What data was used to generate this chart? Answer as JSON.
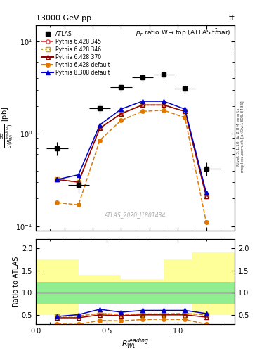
{
  "title_top": "13000 GeV pp",
  "title_right": "tt",
  "watermark": "ATLAS_2020_I1801434",
  "rivet_text": "Rivet 3.1.10, ≥ 2.8M events",
  "mcplots_text": "mcplots.cern.ch [arXiv:1306.3436]",
  "xlim": [
    0,
    1.4
  ],
  "ylim_main": [
    0.09,
    15
  ],
  "ylim_ratio": [
    0.3,
    2.2
  ],
  "xcenters": [
    0.15,
    0.3,
    0.45,
    0.6,
    0.75,
    0.9,
    1.05,
    1.2
  ],
  "atlas_xerr": [
    0.075,
    0.075,
    0.075,
    0.075,
    0.075,
    0.075,
    0.075,
    0.1
  ],
  "atlas_y": [
    0.7,
    0.28,
    1.9,
    3.2,
    4.1,
    4.4,
    3.1,
    0.42
  ],
  "atlas_yerr": [
    0.12,
    0.05,
    0.25,
    0.35,
    0.45,
    0.45,
    0.35,
    0.07
  ],
  "py6_345_y": [
    0.32,
    0.3,
    1.15,
    1.65,
    2.05,
    2.05,
    1.75,
    0.21
  ],
  "py6_346_y": [
    0.32,
    0.3,
    1.15,
    1.65,
    2.05,
    2.05,
    1.75,
    0.21
  ],
  "py6_370_y": [
    0.32,
    0.3,
    1.15,
    1.65,
    2.05,
    2.05,
    1.75,
    0.21
  ],
  "py6_def_y": [
    0.18,
    0.17,
    0.85,
    1.4,
    1.75,
    1.8,
    1.5,
    0.11
  ],
  "py8_def_y": [
    0.32,
    0.36,
    1.25,
    1.85,
    2.25,
    2.25,
    1.85,
    0.23
  ],
  "ratio_py6_345": [
    0.47,
    0.48,
    0.535,
    0.515,
    0.525,
    0.525,
    0.535,
    0.505
  ],
  "ratio_py6_346": [
    0.47,
    0.48,
    0.535,
    0.515,
    0.525,
    0.525,
    0.535,
    0.505
  ],
  "ratio_py6_370": [
    0.44,
    0.44,
    0.505,
    0.485,
    0.505,
    0.505,
    0.505,
    0.455
  ],
  "ratio_py6_def": [
    0.3,
    0.29,
    0.38,
    0.37,
    0.4,
    0.41,
    0.4,
    0.295
  ],
  "ratio_py8_def": [
    0.47,
    0.51,
    0.63,
    0.565,
    0.605,
    0.605,
    0.605,
    0.535
  ],
  "band_xedges": [
    0.0,
    0.3,
    0.6,
    0.9,
    1.1,
    1.4
  ],
  "band_green_low": [
    0.75,
    0.75,
    0.75,
    0.75,
    0.75,
    0.75
  ],
  "band_green_high": [
    1.25,
    1.25,
    1.25,
    1.25,
    1.25,
    1.25
  ],
  "band_yellow_low": [
    0.5,
    0.75,
    0.75,
    0.75,
    0.5,
    0.5
  ],
  "band_yellow_high": [
    1.75,
    1.4,
    1.3,
    1.75,
    1.9,
    1.9
  ],
  "colors": {
    "py6_345": "#e05050",
    "py6_346": "#c8a000",
    "py6_370": "#900000",
    "py6_def": "#e07800",
    "py8_def": "#0000cc"
  },
  "atlas_color": "#000000",
  "green_band": "#90ee90",
  "yellow_band": "#ffff99"
}
